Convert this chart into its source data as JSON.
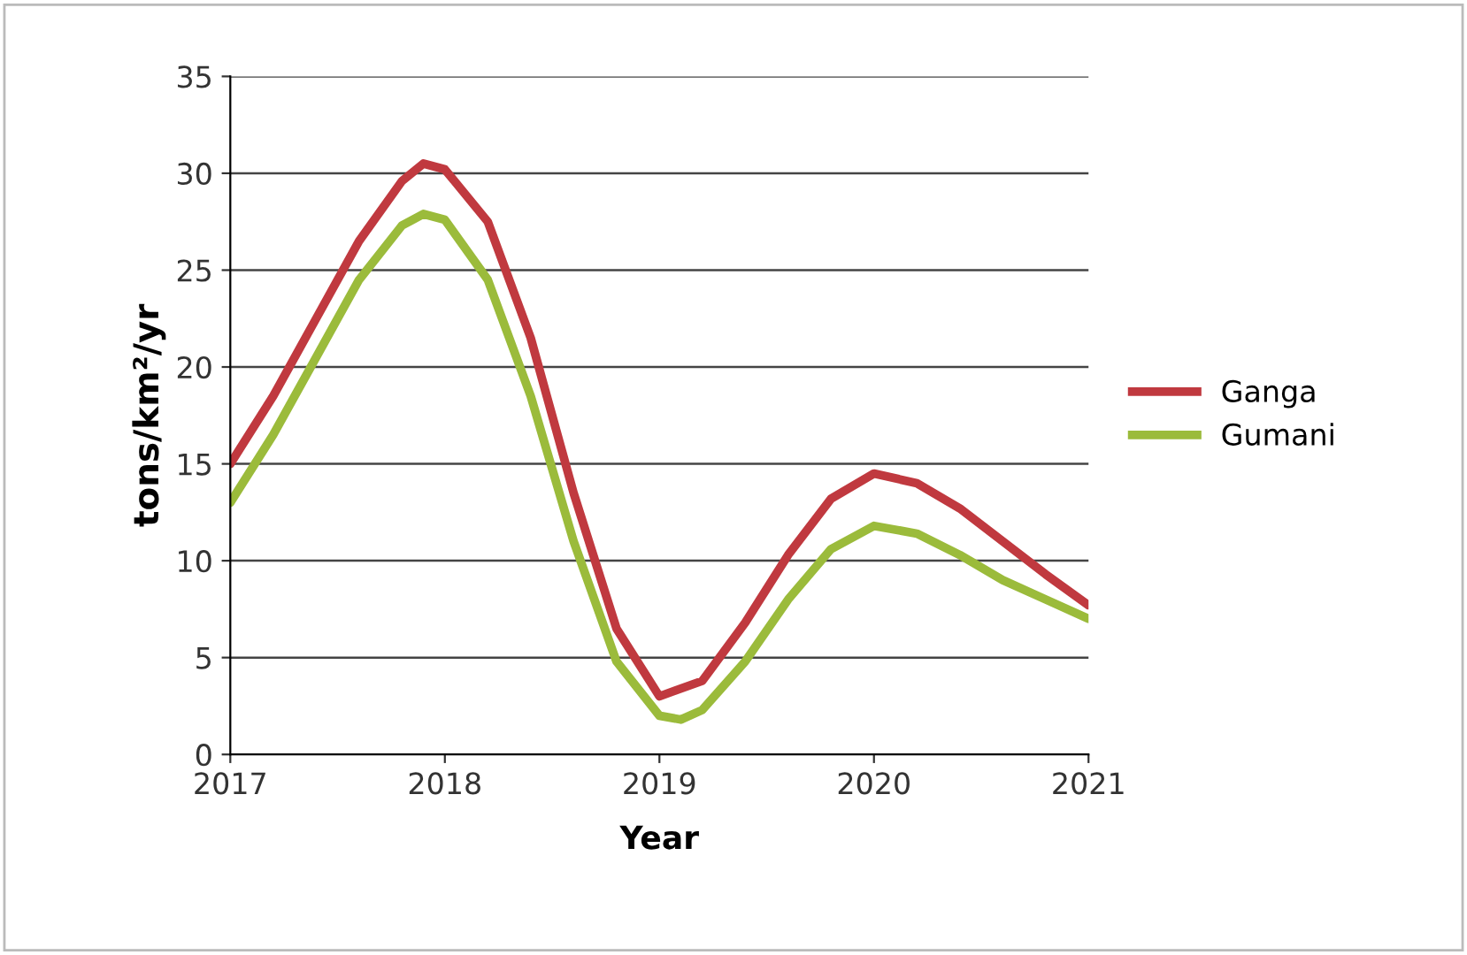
{
  "chart_data": {
    "type": "line",
    "xlabel": "Year",
    "ylabel": "tons/km²/yr",
    "xlim": [
      2017,
      2021
    ],
    "xticks": [
      2017,
      2018,
      2019,
      2020,
      2021
    ],
    "ylim": [
      0,
      35
    ],
    "yticks": [
      0,
      5,
      10,
      15,
      20,
      25,
      30,
      35
    ],
    "grid": "y",
    "legend": "right",
    "series": [
      {
        "name": "Ganga",
        "color": "#c0393f",
        "x": [
          2017,
          2017.2,
          2017.4,
          2017.6,
          2017.8,
          2017.9,
          2018,
          2018.2,
          2018.4,
          2018.6,
          2018.8,
          2019,
          2019.2,
          2019.4,
          2019.6,
          2019.8,
          2020,
          2020.2,
          2020.4,
          2020.6,
          2020.8,
          2021
        ],
        "values": [
          15,
          18.5,
          22.5,
          26.5,
          29.6,
          30.5,
          30.2,
          27.5,
          21.5,
          13.5,
          6.5,
          3,
          3.8,
          6.8,
          10.3,
          13.2,
          14.5,
          14,
          12.7,
          11,
          9.3,
          7.7
        ]
      },
      {
        "name": "Gumani",
        "color": "#9bbb3b",
        "x": [
          2017,
          2017.2,
          2017.4,
          2017.6,
          2017.8,
          2017.9,
          2018,
          2018.2,
          2018.4,
          2018.6,
          2018.8,
          2019,
          2019.1,
          2019.2,
          2019.4,
          2019.6,
          2019.8,
          2020,
          2020.2,
          2020.4,
          2020.6,
          2020.8,
          2021
        ],
        "values": [
          13,
          16.5,
          20.5,
          24.5,
          27.3,
          27.9,
          27.6,
          24.5,
          18.5,
          11,
          4.8,
          2,
          1.8,
          2.3,
          4.8,
          8,
          10.6,
          11.8,
          11.4,
          10.3,
          9,
          8,
          7
        ]
      }
    ]
  }
}
